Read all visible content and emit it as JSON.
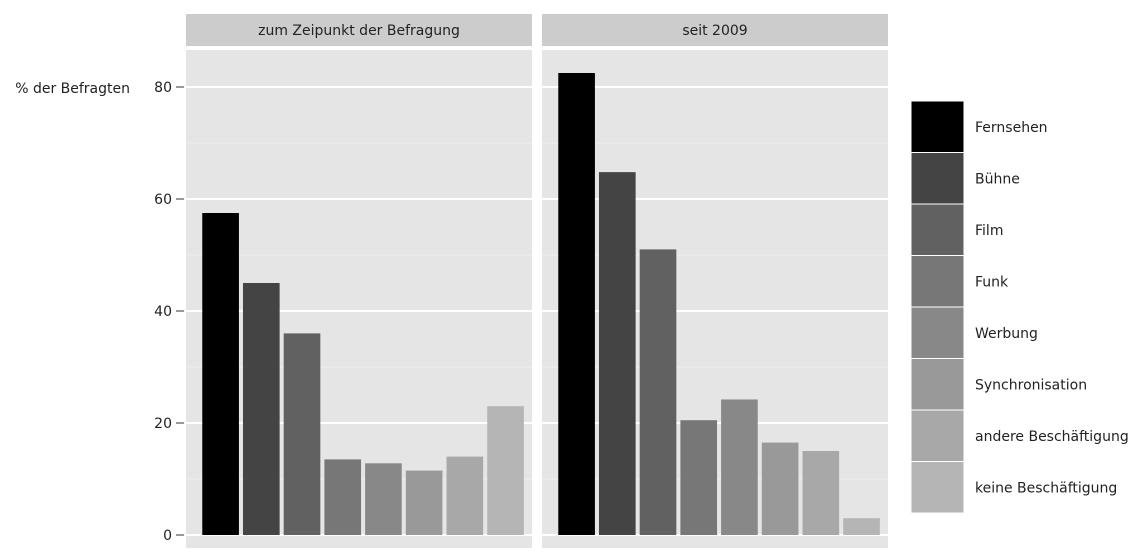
{
  "chart_data": {
    "type": "bar",
    "ylabel": "% der Befragten",
    "ylim": [
      0,
      90
    ],
    "yticks": [
      0,
      20,
      40,
      60,
      80
    ],
    "yticks_text": [
      "0",
      "20",
      "40",
      "60",
      "80"
    ],
    "grid": true,
    "legend_position": "right",
    "categories": [
      "Fernsehen",
      "Bühne",
      "Film",
      "Funk",
      "Werbung",
      "Synchronisation",
      "andere Beschäftigung",
      "keine Beschäftigung"
    ],
    "colors": [
      "#000000",
      "#444444",
      "#616161",
      "#777777",
      "#888888",
      "#999999",
      "#a8a8a8",
      "#b5b5b5"
    ],
    "panels": [
      {
        "title": "zum Zeipunkt der Befragung",
        "values": [
          57.5,
          45.0,
          36.0,
          13.5,
          12.8,
          11.5,
          14.0,
          23.0
        ]
      },
      {
        "title": "seit 2009",
        "values": [
          82.5,
          64.8,
          51.0,
          20.5,
          24.2,
          16.5,
          15.0,
          3.0
        ]
      }
    ]
  }
}
